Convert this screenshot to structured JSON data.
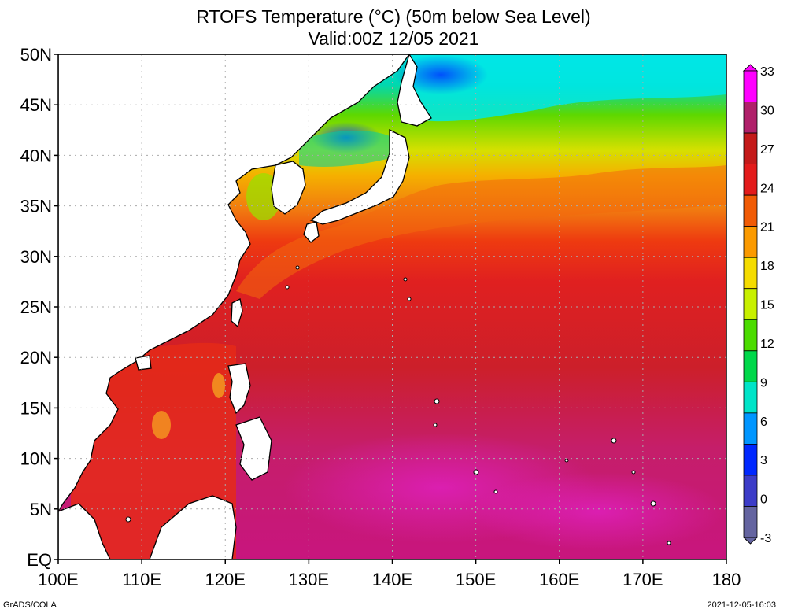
{
  "title_line1": "RTOFS Temperature (°C) (50m below Sea Level)",
  "title_line2": "Valid:00Z 12/05 2021",
  "footer_left": "GrADS/COLA",
  "footer_right": "2021-12-05-16:03",
  "map": {
    "lon_range": [
      100,
      180
    ],
    "lat_range": [
      0,
      50
    ],
    "lat_ticks": [
      {
        "value": 50,
        "label": "50N"
      },
      {
        "value": 45,
        "label": "45N"
      },
      {
        "value": 40,
        "label": "40N"
      },
      {
        "value": 35,
        "label": "35N"
      },
      {
        "value": 30,
        "label": "30N"
      },
      {
        "value": 25,
        "label": "25N"
      },
      {
        "value": 20,
        "label": "20N"
      },
      {
        "value": 15,
        "label": "15N"
      },
      {
        "value": 10,
        "label": "10N"
      },
      {
        "value": 5,
        "label": "5N"
      },
      {
        "value": 0,
        "label": "EQ"
      }
    ],
    "lon_ticks": [
      {
        "value": 100,
        "label": "100E"
      },
      {
        "value": 110,
        "label": "110E"
      },
      {
        "value": 120,
        "label": "120E"
      },
      {
        "value": 130,
        "label": "130E"
      },
      {
        "value": 140,
        "label": "140E"
      },
      {
        "value": 150,
        "label": "150E"
      },
      {
        "value": 160,
        "label": "160E"
      },
      {
        "value": 170,
        "label": "170E"
      },
      {
        "value": 180,
        "label": "180"
      }
    ],
    "grid": true
  },
  "colorbar": {
    "labels": [
      "33",
      "30",
      "27",
      "24",
      "21",
      "18",
      "15",
      "12",
      "9",
      "6",
      "3",
      "0",
      "-3"
    ],
    "colors": [
      "#ff00ff",
      "#b0206a",
      "#c41a1a",
      "#e31b1b",
      "#f15b05",
      "#fb9a00",
      "#f5dc00",
      "#c8f000",
      "#4bdc00",
      "#00d84a",
      "#00e4c8",
      "#0096ff",
      "#0028ff",
      "#3c3cc8",
      "#6464a0"
    ]
  }
}
